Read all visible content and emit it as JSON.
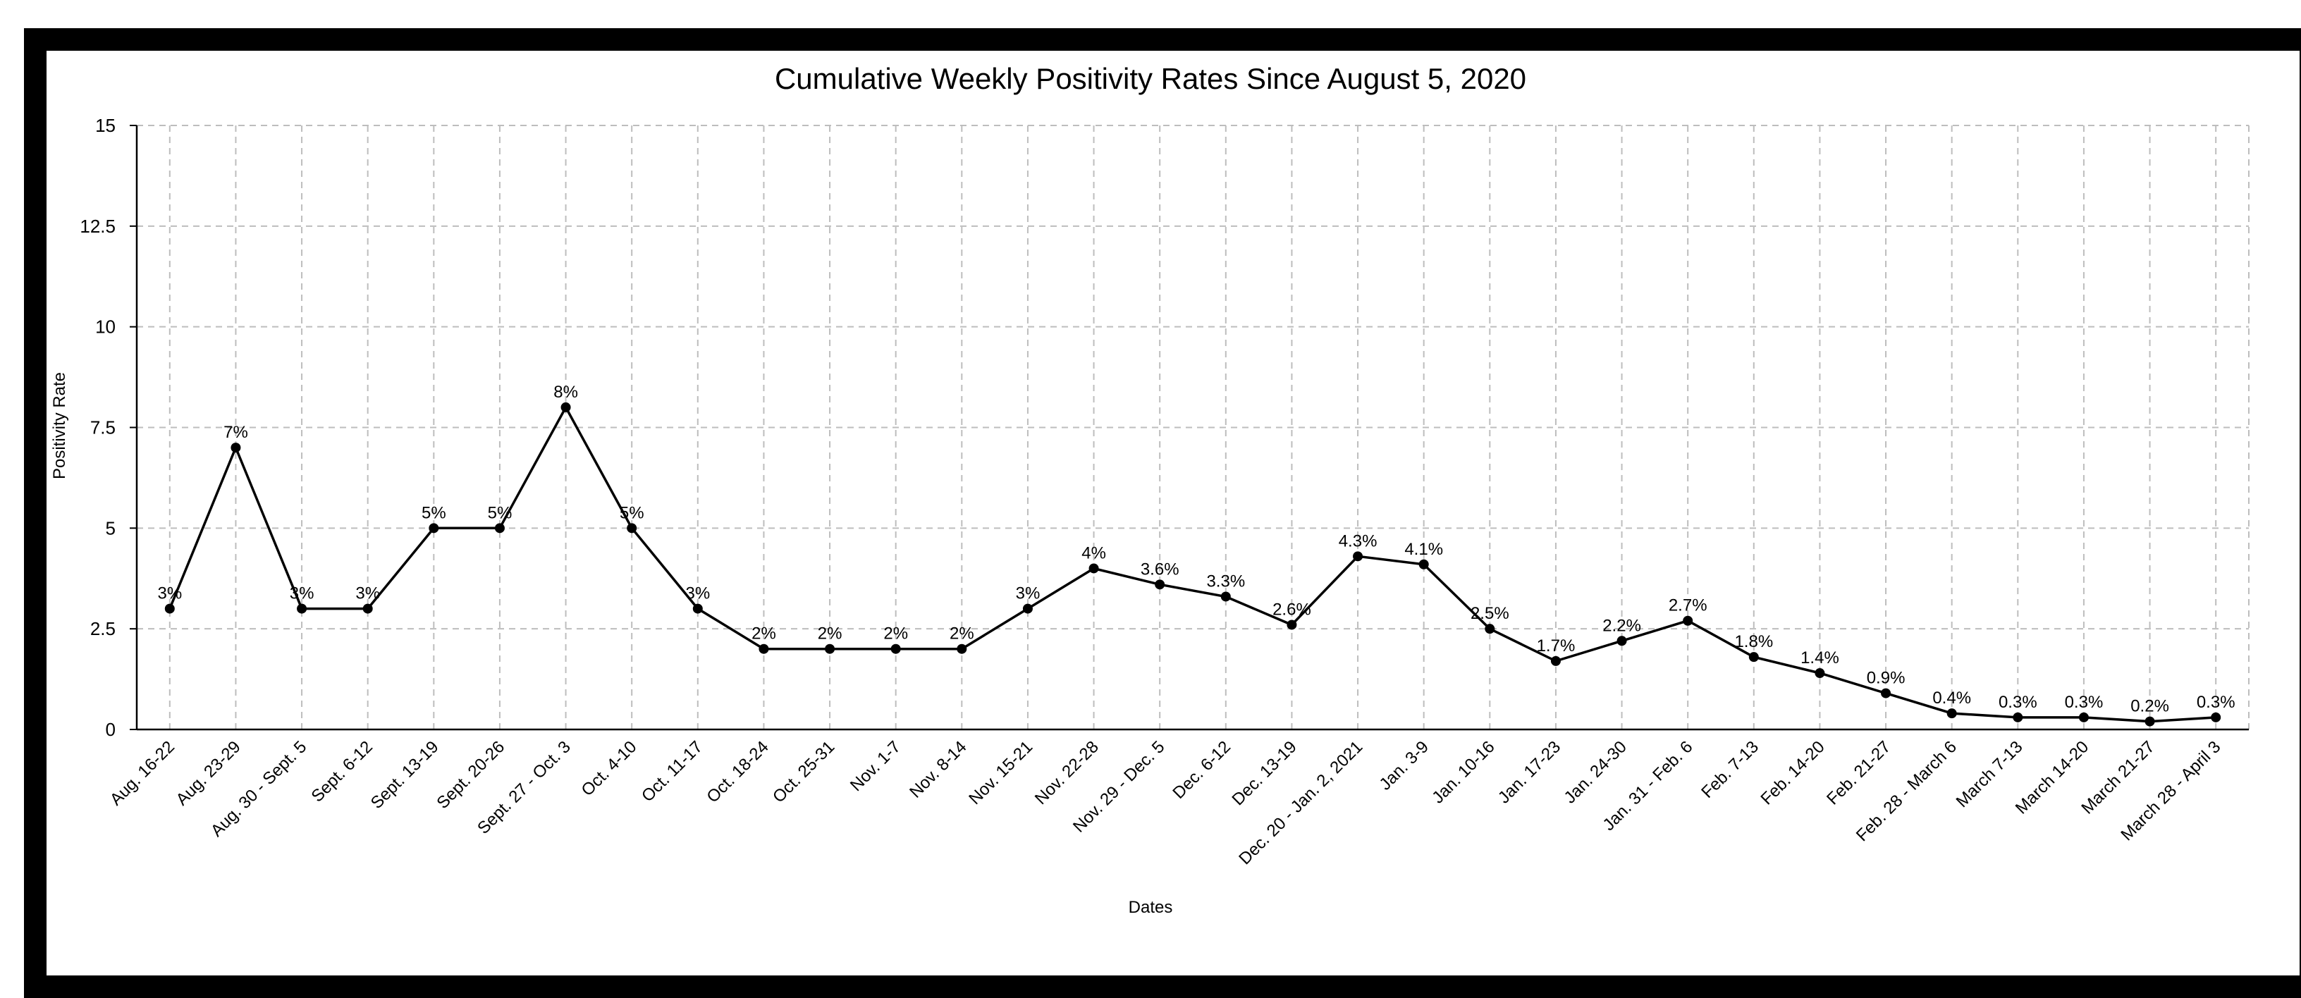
{
  "chart_data": {
    "type": "line",
    "title": "Cumulative Weekly Positivity Rates Since August 5, 2020",
    "xlabel": "Dates",
    "ylabel": "Positivity Rate",
    "ylim": [
      0,
      15
    ],
    "yticks": [
      0,
      2.5,
      5,
      7.5,
      10,
      12.5,
      15
    ],
    "ytick_labels": [
      "0",
      "2.5",
      "5",
      "7.5",
      "10",
      "12.5",
      "15"
    ],
    "grid": true,
    "categories": [
      "Aug. 16-22",
      "Aug. 23-29",
      "Aug. 30 - Sept. 5",
      "Sept. 6-12",
      "Sept. 13-19",
      "Sept. 20-26",
      "Sept. 27 - Oct. 3",
      "Oct. 4-10",
      "Oct. 11-17",
      "Oct. 18-24",
      "Oct. 25-31",
      "Nov. 1-7",
      "Nov. 8-14",
      "Nov. 15-21",
      "Nov. 22-28",
      "Nov. 29 - Dec. 5",
      "Dec. 6-12",
      "Dec. 13-19",
      "Dec. 20 - Jan. 2, 2021",
      "Jan. 3-9",
      "Jan. 10-16",
      "Jan. 17-23",
      "Jan. 24-30",
      "Jan. 31 - Feb. 6",
      "Feb. 7-13",
      "Feb. 14-20",
      "Feb. 21-27",
      "Feb. 28 - March 6",
      "March 7-13",
      "March 14-20",
      "March 21-27",
      "March 28 - April 3"
    ],
    "values": [
      3,
      7,
      3,
      3,
      5,
      5,
      8,
      5,
      3,
      2,
      2,
      2,
      2,
      3,
      4,
      3.6,
      3.3,
      2.6,
      4.3,
      4.1,
      2.5,
      1.7,
      2.2,
      2.7,
      1.8,
      1.4,
      0.9,
      0.4,
      0.3,
      0.3,
      0.2,
      0.3
    ],
    "data_labels": [
      "3%",
      "7%",
      "3%",
      "3%",
      "5%",
      "5%",
      "8%",
      "5%",
      "3%",
      "2%",
      "2%",
      "2%",
      "2%",
      "3%",
      "4%",
      "3.6%",
      "3.3%",
      "2.6%",
      "4.3%",
      "4.1%",
      "2.5%",
      "1.7%",
      "2.2%",
      "2.7%",
      "1.8%",
      "1.4%",
      "0.9%",
      "0.4%",
      "0.3%",
      "0.3%",
      "0.2%",
      "0.3%"
    ],
    "line_color": "#000000",
    "grid_color": "#bdbdbd"
  }
}
